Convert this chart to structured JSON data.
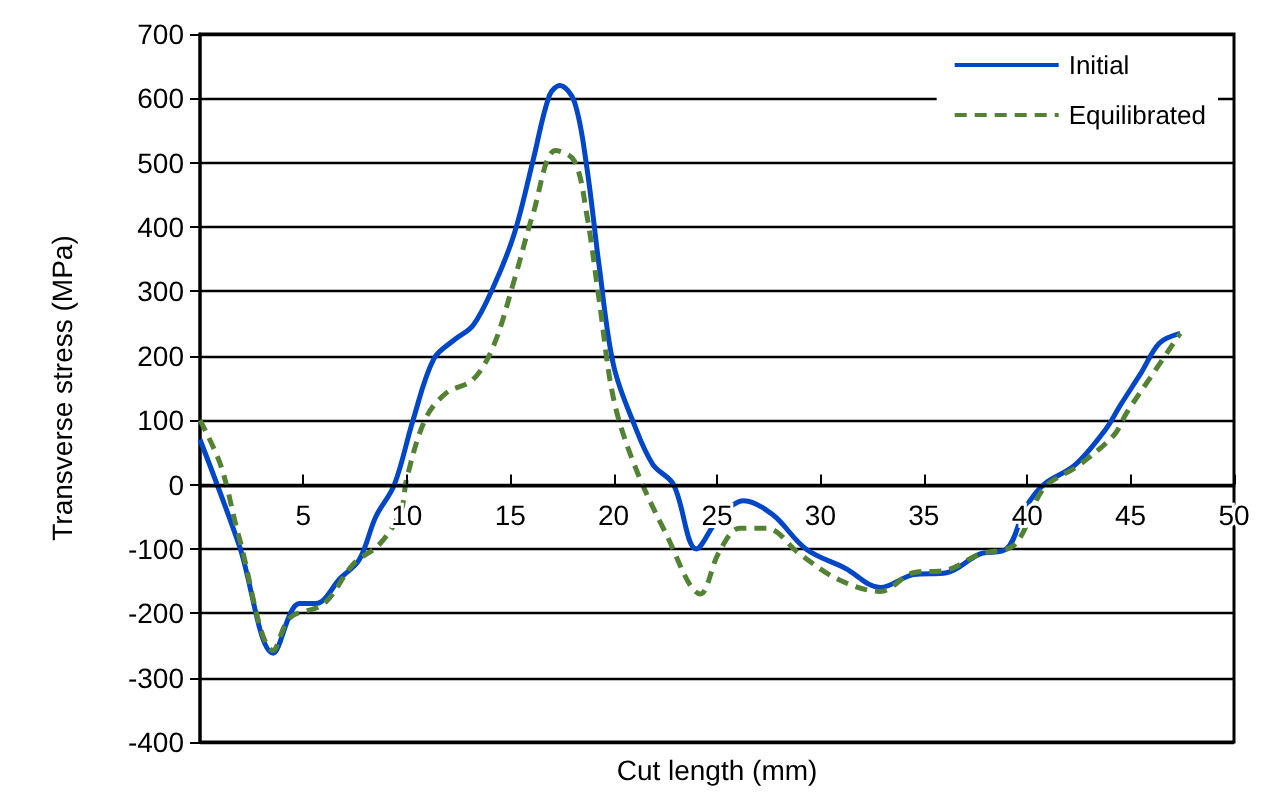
{
  "chart_data": {
    "type": "line",
    "xlabel": "Cut length (mm)",
    "ylabel": "Transverse stress (MPa)",
    "xlim": [
      0,
      50
    ],
    "xticks": [
      5,
      10,
      15,
      20,
      25,
      30,
      35,
      40,
      45,
      50
    ],
    "ylim": [
      -400,
      700
    ],
    "yticks": [
      -400,
      -300,
      -200,
      -100,
      0,
      100,
      200,
      300,
      400,
      500,
      600,
      700
    ],
    "grid": "y",
    "legend": "top right",
    "marker": "none",
    "series": [
      {
        "name": "Initial",
        "color": "#0047c8",
        "line_style": "solid",
        "x": [
          0,
          1.9,
          3.55,
          4.8,
          5.6,
          6.8,
          7.7,
          8.5,
          9.4,
          10.3,
          11.3,
          12.3,
          13.2,
          14.2,
          15.2,
          16.1,
          16.9,
          17.4,
          18.1,
          18.7,
          19.3,
          20,
          21,
          21.9,
          22.9,
          24,
          25.1,
          26.3,
          27.7,
          29.3,
          31.2,
          32.9,
          34.5,
          36.1,
          37.7,
          39,
          39.9,
          40.8,
          42.3,
          43.8,
          44.5,
          45.5,
          46.4,
          47.4
        ],
        "values": [
          70,
          -95,
          -262,
          -185,
          -185,
          -145,
          -117,
          -50,
          0,
          100,
          195,
          225,
          247,
          308,
          390,
          503,
          605,
          620,
          595,
          494,
          340,
          185,
          93,
          31,
          0,
          -100,
          -52,
          -25,
          -47,
          -100,
          -130,
          -160,
          -140,
          -137,
          -108,
          -100,
          -37,
          0,
          30,
          86,
          123,
          173,
          220,
          235
        ]
      },
      {
        "name": "Equilibrated",
        "color": "#548235",
        "line_style": "dashed",
        "x": [
          0,
          1,
          1.9,
          3.55,
          4.35,
          6,
          7.4,
          8.7,
          9.7,
          10,
          10.9,
          11.9,
          13.2,
          14.2,
          15.2,
          16.1,
          17.2,
          18.1,
          18.7,
          19.3,
          20,
          21,
          22.5,
          24.2,
          25.1,
          26.1,
          27.4,
          29,
          30.9,
          32.9,
          34.5,
          36.1,
          37.7,
          39.4,
          40.8,
          42.5,
          44.2,
          44.8,
          46.1,
          47.4
        ],
        "values": [
          100,
          30,
          -83,
          -258,
          -207,
          -185,
          -124,
          -92,
          -42,
          10,
          102,
          142,
          163,
          216,
          318,
          420,
          519,
          503,
          420,
          287,
          133,
          31,
          -74,
          -170,
          -105,
          -68,
          -68,
          -108,
          -148,
          -166,
          -137,
          -133,
          -108,
          -93,
          -6,
          30,
          77,
          111,
          173,
          235
        ]
      }
    ]
  }
}
